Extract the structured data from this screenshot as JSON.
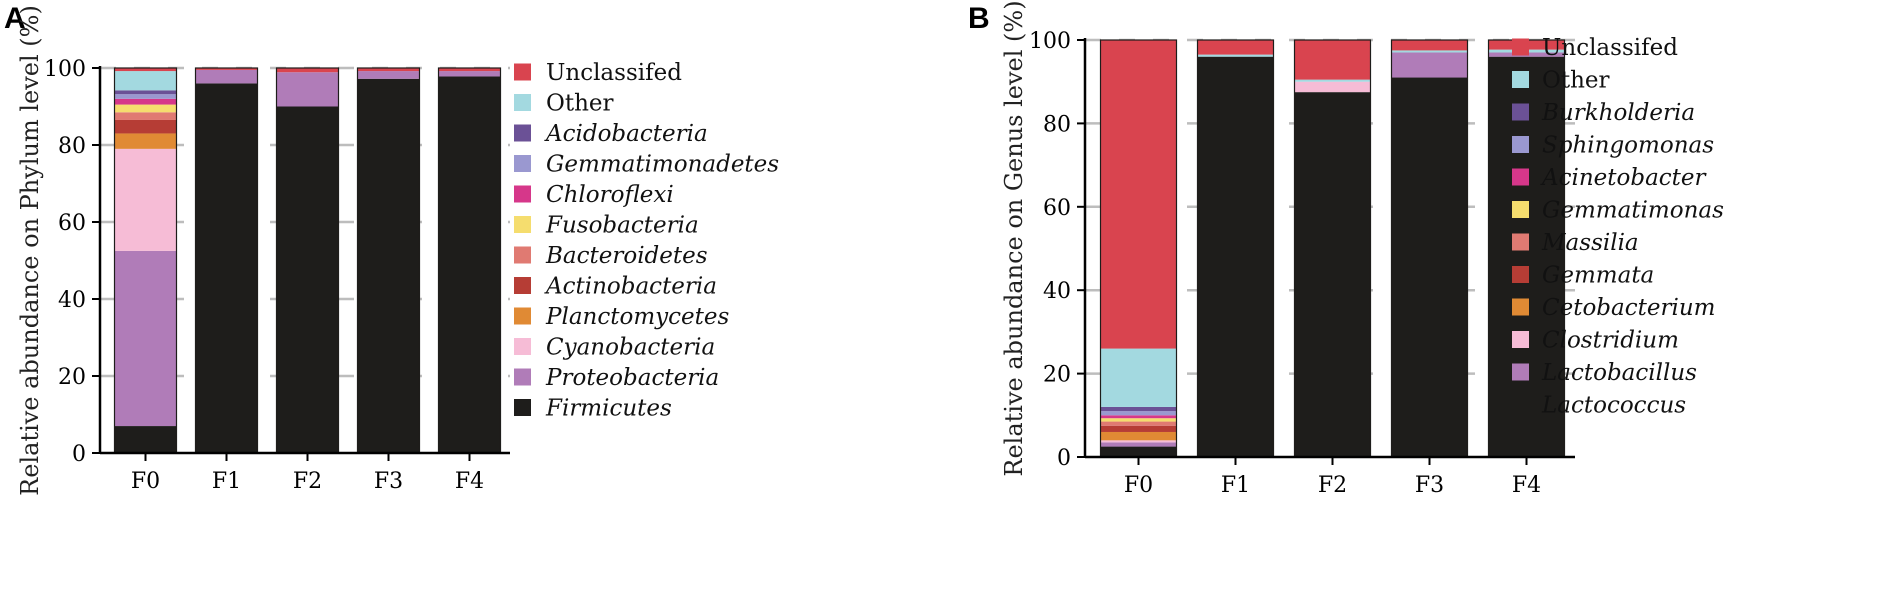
{
  "chart_data": [
    {
      "panel": "A",
      "type": "bar",
      "stacked": true,
      "ylabel": "Relative abundance on Phylum level (%)",
      "xlabel": "",
      "ylim": [
        0,
        100
      ],
      "yticks": [
        0,
        20,
        40,
        60,
        80,
        100
      ],
      "categories": [
        "F0",
        "F1",
        "F2",
        "F3",
        "F4"
      ],
      "legend_position": "right",
      "series": [
        {
          "name": "Firmicutes",
          "italic": true,
          "color": "#1e1d1b",
          "values": [
            7.0,
            96.0,
            90.0,
            97.2,
            97.8
          ]
        },
        {
          "name": "Proteobacteria",
          "italic": true,
          "color": "#b07cb8",
          "values": [
            45.5,
            3.5,
            8.9,
            2.0,
            1.4
          ]
        },
        {
          "name": "Cyanobacteria",
          "italic": true,
          "color": "#f6bcd6",
          "values": [
            26.5,
            0.0,
            0.0,
            0.0,
            0.0
          ]
        },
        {
          "name": "Planctomycetes",
          "italic": true,
          "color": "#e08a34",
          "values": [
            4.0,
            0.0,
            0.0,
            0.0,
            0.0
          ]
        },
        {
          "name": "Actinobacteria",
          "italic": true,
          "color": "#b63d35",
          "values": [
            3.5,
            0.0,
            0.0,
            0.0,
            0.0
          ]
        },
        {
          "name": "Bacteroidetes",
          "italic": true,
          "color": "#e07a72",
          "values": [
            2.0,
            0.0,
            0.0,
            0.0,
            0.0
          ]
        },
        {
          "name": "Fusobacteria",
          "italic": true,
          "color": "#f5dd6e",
          "values": [
            2.0,
            0.0,
            0.0,
            0.0,
            0.0
          ]
        },
        {
          "name": "Chloroflexi",
          "italic": true,
          "color": "#d6378a",
          "values": [
            1.5,
            0.0,
            0.0,
            0.0,
            0.0
          ]
        },
        {
          "name": "Gemmatimonadetes",
          "italic": true,
          "color": "#9a98d0",
          "values": [
            1.2,
            0.0,
            0.0,
            0.0,
            0.0
          ]
        },
        {
          "name": "Acidobacteria",
          "italic": true,
          "color": "#6b5196",
          "values": [
            1.0,
            0.0,
            0.0,
            0.0,
            0.0
          ]
        },
        {
          "name": "Other",
          "italic": false,
          "color": "#a3d9e0",
          "values": [
            5.0,
            0.0,
            0.0,
            0.0,
            0.0
          ]
        },
        {
          "name": "Unclassifed",
          "italic": false,
          "color": "#d9444f",
          "values": [
            0.8,
            0.5,
            1.1,
            0.8,
            0.8
          ]
        }
      ]
    },
    {
      "panel": "B",
      "type": "bar",
      "stacked": true,
      "ylabel": "Relative abundance on Genus level (%)",
      "xlabel": "",
      "ylim": [
        0,
        100
      ],
      "yticks": [
        0,
        20,
        40,
        60,
        80,
        100
      ],
      "categories": [
        "F0",
        "F1",
        "F2",
        "F3",
        "F4"
      ],
      "legend_position": "right",
      "series": [
        {
          "name": "Lactococcus",
          "italic": true,
          "color": "#1e1d1b",
          "values": [
            2.5,
            96.0,
            87.5,
            91.0,
            96.0
          ]
        },
        {
          "name": "Lactobacillus",
          "italic": true,
          "color": "#b07cb8",
          "values": [
            1.0,
            0.0,
            0.0,
            6.0,
            1.0
          ]
        },
        {
          "name": "Clostridium",
          "italic": true,
          "color": "#f6bcd6",
          "values": [
            0.5,
            0.0,
            2.5,
            0.0,
            0.0
          ]
        },
        {
          "name": "Cetobacterium",
          "italic": true,
          "color": "#e08a34",
          "values": [
            2.0,
            0.0,
            0.0,
            0.0,
            0.0
          ]
        },
        {
          "name": "Gemmata",
          "italic": true,
          "color": "#b63d35",
          "values": [
            1.5,
            0.0,
            0.0,
            0.0,
            0.0
          ]
        },
        {
          "name": "Massilia",
          "italic": true,
          "color": "#e07a72",
          "values": [
            1.0,
            0.0,
            0.0,
            0.0,
            0.0
          ]
        },
        {
          "name": "Gemmatimonas",
          "italic": true,
          "color": "#f5dd6e",
          "values": [
            0.8,
            0.0,
            0.0,
            0.0,
            0.0
          ]
        },
        {
          "name": "Acinetobacter",
          "italic": true,
          "color": "#d6378a",
          "values": [
            0.7,
            0.0,
            0.0,
            0.0,
            0.0
          ]
        },
        {
          "name": "Sphingomonas",
          "italic": true,
          "color": "#9a98d0",
          "values": [
            1.0,
            0.0,
            0.0,
            0.0,
            0.0
          ]
        },
        {
          "name": "Burkholderia",
          "italic": true,
          "color": "#6b5196",
          "values": [
            1.0,
            0.0,
            0.0,
            0.0,
            0.0
          ]
        },
        {
          "name": "Other",
          "italic": false,
          "color": "#a3d9e0",
          "values": [
            14.0,
            0.5,
            0.5,
            0.5,
            0.7
          ]
        },
        {
          "name": "Unclassifed",
          "italic": false,
          "color": "#d9444f",
          "values": [
            74.0,
            3.5,
            9.5,
            2.5,
            2.3
          ]
        }
      ]
    }
  ]
}
